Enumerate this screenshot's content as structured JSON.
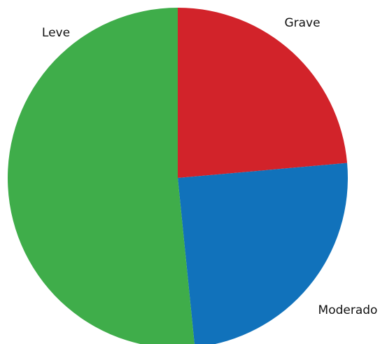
{
  "chart_data": {
    "type": "pie",
    "categories": [
      "Grave",
      "Moderado",
      "Leve"
    ],
    "values": [
      23.6,
      24.8,
      51.6
    ],
    "colors": [
      "#d2232a",
      "#1172bb",
      "#3fad4a"
    ]
  }
}
